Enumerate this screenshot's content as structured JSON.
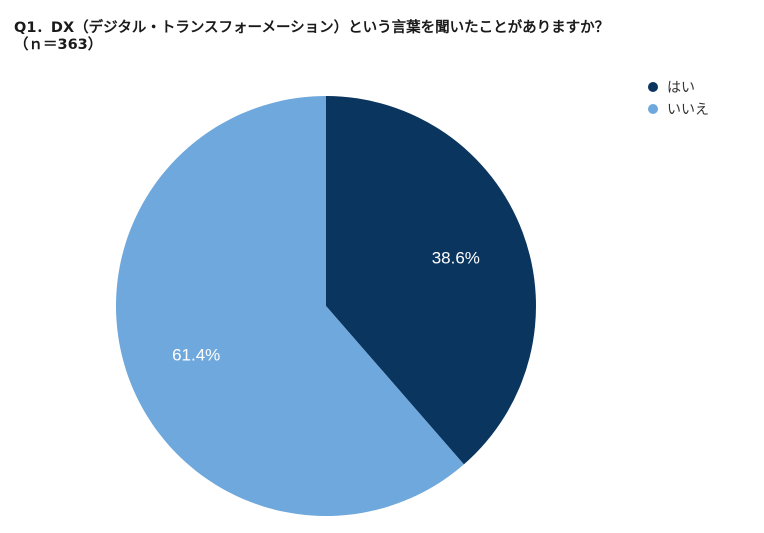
{
  "chart_data": {
    "type": "pie",
    "title_line1": "Q1．DX（デジタル・トランスフォーメーション）という言葉を聞いたことがありますか？",
    "title_line2": "（ｎ＝363）",
    "categories": [
      "はい",
      "いいえ"
    ],
    "values": [
      38.6,
      61.4
    ],
    "labels": [
      "38.6%",
      "61.4%"
    ],
    "colors": [
      "#0a355f",
      "#6fa8dc"
    ],
    "start_angle_deg": 0,
    "direction": "clockwise",
    "legend_position": "top-right"
  }
}
